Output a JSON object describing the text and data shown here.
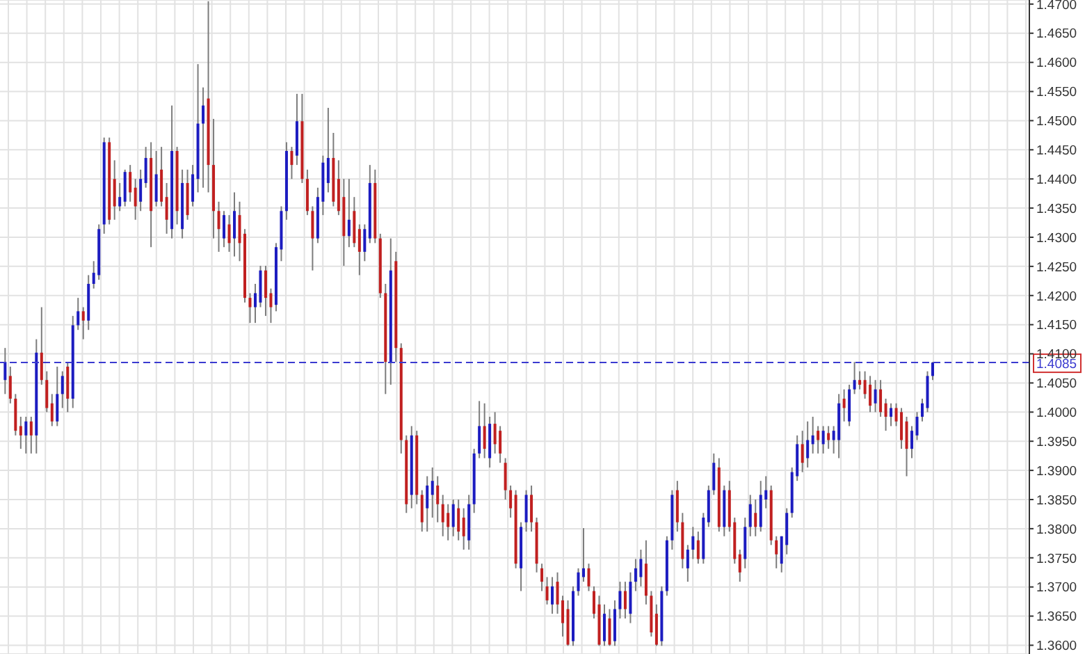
{
  "chart_data": {
    "type": "candlestick",
    "colors": [
      "#1c1cc0",
      "#c02020",
      "#c02020",
      "#c02020",
      "#1c1cc0",
      "#c02020",
      "#1c1cc0",
      "#c02020",
      "#c02020",
      "#c02020",
      "#1c1cc0",
      "#1c1cc0",
      "#c02020",
      "#1c1cc0",
      "#1c1cc0",
      "#c02020",
      "#1c1cc0",
      "#1c1cc0",
      "#1c1cc0",
      "#1c1cc0",
      "#c02020",
      "#c02020",
      "#1c1cc0",
      "#1c1cc0",
      "#c02020",
      "#c02020",
      "#1c1cc0",
      "#1c1cc0",
      "#c02020",
      "#1c1cc0",
      "#c02020",
      "#c02020",
      "#1c1cc0",
      "#c02020",
      "#1c1cc0",
      "#c02020",
      "#1c1cc0",
      "#1c1cc0",
      "#1c1cc0",
      "#c02020",
      "#c02020",
      "#c02020",
      "#1c1cc0",
      "#c02020",
      "#1c1cc0",
      "#c02020",
      "#c02020",
      "#c02020",
      "#1c1cc0",
      "#1c1cc0",
      "#c02020",
      "#c02020",
      "#1c1cc0",
      "#1c1cc0",
      "#1c1cc0",
      "#c02020",
      "#1c1cc0",
      "#c02020",
      "#c02020",
      "#c02020",
      "#1c1cc0",
      "#1c1cc0",
      "#1c1cc0",
      "#c02020",
      "#c02020",
      "#c02020",
      "#1c1cc0",
      "#c02020",
      "#c02020",
      "#1c1cc0",
      "#1c1cc0",
      "#c02020",
      "#c02020",
      "#c02020",
      "#1c1cc0",
      "#c02020",
      "#c02020",
      "#c02020",
      "#1c1cc0",
      "#c02020",
      "#c02020",
      "#1c1cc0",
      "#1c1cc0",
      "#c02020",
      "#c02020",
      "#c02020",
      "#1c1cc0",
      "#c02020",
      "#c02020",
      "#1c1cc0",
      "#1c1cc0",
      "#1c1cc0",
      "#c02020",
      "#1c1cc0",
      "#c02020",
      "#c02020",
      "#c02020",
      "#c02020",
      "#c02020",
      "#1c1cc0",
      "#1c1cc0",
      "#c02020",
      "#c02020",
      "#c02020",
      "#c02020",
      "#1c1cc0",
      "#c02020",
      "#c02020",
      "#c02020",
      "#1c1cc0",
      "#1c1cc0",
      "#1c1cc0",
      "#c02020",
      "#c02020",
      "#c02020",
      "#1c1cc0",
      "#c02020",
      "#1c1cc0",
      "#1c1cc0",
      "#c02020",
      "#1c1cc0",
      "#1c1cc0",
      "#1c1cc0",
      "#c02020",
      "#c02020",
      "#c02020",
      "#1c1cc0",
      "#1c1cc0",
      "#1c1cc0",
      "#c02020",
      "#c02020",
      "#1c1cc0",
      "#1c1cc0",
      "#c02020",
      "#1c1cc0",
      "#1c1cc0",
      "#1c1cc0",
      "#c02020",
      "#1c1cc0",
      "#c02020",
      "#c02020",
      "#c02020",
      "#1c1cc0",
      "#1c1cc0",
      "#c02020",
      "#1c1cc0",
      "#1c1cc0",
      "#c02020",
      "#c02020",
      "#1c1cc0",
      "#1c1cc0",
      "#1c1cc0",
      "#1c1cc0",
      "#c02020",
      "#1c1cc0",
      "#1c1cc0",
      "#c02020",
      "#1c1cc0",
      "#c02020",
      "#1c1cc0",
      "#1c1cc0",
      "#c02020",
      "#1c1cc0",
      "#1c1cc0",
      "#c02020",
      "#c02020",
      "#c02020",
      "#1c1cc0",
      "#c02020",
      "#c02020",
      "#1c1cc0",
      "#c02020",
      "#c02020",
      "#c02020",
      "#1c1cc0",
      "#1c1cc0",
      "#1c1cc0",
      "#1c1cc0",
      "#1c1cc0",
      null,
      null,
      null,
      null,
      null,
      null,
      null,
      null,
      null,
      null,
      null,
      null,
      null,
      null,
      null,
      null,
      null,
      null
    ],
    "grid": true,
    "tick_labels": "y",
    "ylim": [
      1.3585,
      1.4707
    ],
    "yticks": [
      {
        "value": 1.36,
        "label": "1.3600"
      },
      {
        "value": 1.365,
        "label": "1.3650"
      },
      {
        "value": 1.37,
        "label": "1.3700"
      },
      {
        "value": 1.375,
        "label": "1.3750"
      },
      {
        "value": 1.38,
        "label": "1.3800"
      },
      {
        "value": 1.385,
        "label": "1.3850"
      },
      {
        "value": 1.39,
        "label": "1.3900"
      },
      {
        "value": 1.395,
        "label": "1.3950"
      },
      {
        "value": 1.4,
        "label": "1.4000"
      },
      {
        "value": 1.405,
        "label": "1.4050"
      },
      {
        "value": 1.41,
        "label": "1.4100"
      },
      {
        "value": 1.415,
        "label": "1.4150"
      },
      {
        "value": 1.42,
        "label": "1.4200"
      },
      {
        "value": 1.425,
        "label": "1.4250"
      },
      {
        "value": 1.43,
        "label": "1.4300"
      },
      {
        "value": 1.435,
        "label": "1.4350"
      },
      {
        "value": 1.44,
        "label": "1.4400"
      },
      {
        "value": 1.445,
        "label": "1.4450"
      },
      {
        "value": 1.45,
        "label": "1.4500"
      },
      {
        "value": 1.455,
        "label": "1.4550"
      },
      {
        "value": 1.46,
        "label": "1.4600"
      },
      {
        "value": 1.465,
        "label": "1.4650"
      },
      {
        "value": 1.47,
        "label": "1.4700"
      }
    ],
    "ref_lines": [
      {
        "axis": "y",
        "value": 1.4085,
        "label": "1.4085",
        "color": "#3a3ad0",
        "line_style": "dashed"
      }
    ],
    "categories": [
      null,
      null,
      null,
      null,
      null,
      null,
      null,
      null,
      null,
      null,
      null,
      null,
      null,
      null,
      null,
      null,
      null,
      null,
      null,
      null,
      null,
      null,
      null,
      null,
      null,
      null,
      null,
      null,
      null,
      null,
      null,
      null,
      null,
      null,
      null,
      null,
      null,
      null,
      null,
      null,
      null,
      null,
      null,
      null,
      null,
      null,
      null,
      null,
      null,
      null,
      null,
      null,
      null,
      null,
      null,
      null,
      null,
      null,
      null,
      null,
      null,
      null,
      null,
      null,
      null,
      null,
      null,
      null,
      null,
      null,
      null,
      null,
      null,
      null,
      null,
      null,
      null,
      null,
      null,
      null,
      null,
      null,
      null,
      null,
      null,
      null,
      null,
      null,
      null,
      null,
      null,
      null,
      null,
      null,
      null,
      null,
      null,
      null,
      null,
      null,
      null,
      null,
      null,
      null,
      null,
      null,
      null,
      null,
      null,
      null,
      null,
      null,
      null,
      null,
      null,
      null,
      null,
      null,
      null,
      null,
      null,
      null,
      null,
      null,
      null,
      null,
      null,
      null,
      null,
      null,
      null,
      null,
      null,
      null,
      null,
      null,
      null,
      null,
      null,
      null,
      null,
      null,
      null,
      null,
      null,
      null,
      null,
      null,
      null,
      null,
      null,
      null,
      null,
      null,
      null,
      null,
      null,
      null,
      null,
      null,
      null,
      null,
      null,
      null,
      null,
      null,
      null,
      null,
      null,
      null,
      null,
      null,
      null,
      null,
      null,
      null,
      null,
      null,
      null,
      null,
      null,
      null,
      null,
      null,
      null,
      null,
      null,
      null,
      null,
      null,
      null,
      null,
      null,
      null,
      null,
      null,
      null
    ],
    "ohlc": [
      [
        1.4055,
        1.411,
        1.4031,
        1.4086
      ],
      [
        1.4062,
        1.4078,
        1.4015,
        1.4023
      ],
      [
        1.4023,
        1.4031,
        1.396,
        1.3968
      ],
      [
        1.3976,
        1.3992,
        1.3937,
        1.396
      ],
      [
        1.396,
        1.3992,
        1.3929,
        1.3984
      ],
      [
        1.3984,
        1.3992,
        1.3929,
        1.396
      ],
      [
        1.396,
        1.4125,
        1.3929,
        1.4102
      ],
      [
        1.4102,
        1.418,
        1.4047,
        1.4055
      ],
      [
        1.4055,
        1.407,
        1.4,
        1.4007
      ],
      [
        1.4015,
        1.4031,
        1.3976,
        1.3984
      ],
      [
        1.3984,
        1.4078,
        1.3976,
        1.4031
      ],
      [
        1.4031,
        1.407,
        1.4007,
        1.4062
      ],
      [
        1.4078,
        1.4086,
        1.4,
        1.4023
      ],
      [
        1.4023,
        1.4165,
        1.4007,
        1.4149
      ],
      [
        1.4149,
        1.4196,
        1.4141,
        1.4173
      ],
      [
        1.4173,
        1.418,
        1.4125,
        1.4157
      ],
      [
        1.4157,
        1.4235,
        1.4141,
        1.422
      ],
      [
        1.422,
        1.4259,
        1.4212,
        1.4239
      ],
      [
        1.4235,
        1.4322,
        1.4227,
        1.4314
      ],
      [
        1.4322,
        1.4471,
        1.4306,
        1.4463
      ],
      [
        1.4463,
        1.4471,
        1.4322,
        1.433
      ],
      [
        1.44,
        1.4432,
        1.433,
        1.4353
      ],
      [
        1.4353,
        1.4393,
        1.4345,
        1.4369
      ],
      [
        1.4361,
        1.4416,
        1.4353,
        1.4412
      ],
      [
        1.4412,
        1.4424,
        1.4361,
        1.4377
      ],
      [
        1.4385,
        1.44,
        1.433,
        1.4353
      ],
      [
        1.4361,
        1.4416,
        1.4345,
        1.44
      ],
      [
        1.4393,
        1.4455,
        1.4385,
        1.4436
      ],
      [
        1.4436,
        1.4463,
        1.4283,
        1.4345
      ],
      [
        1.4361,
        1.4448,
        1.4353,
        1.4408
      ],
      [
        1.4416,
        1.4455,
        1.4353,
        1.4361
      ],
      [
        1.4369,
        1.4393,
        1.4306,
        1.433
      ],
      [
        1.4314,
        1.4526,
        1.4298,
        1.4448
      ],
      [
        1.4448,
        1.4455,
        1.4322,
        1.4345
      ],
      [
        1.4314,
        1.4416,
        1.4298,
        1.4393
      ],
      [
        1.4393,
        1.4416,
        1.433,
        1.4338
      ],
      [
        1.4361,
        1.4424,
        1.4353,
        1.4408
      ],
      [
        1.44,
        1.4597,
        1.4377,
        1.4495
      ],
      [
        1.4495,
        1.4557,
        1.4385,
        1.4526
      ],
      [
        1.4538,
        1.4705,
        1.4377,
        1.4424
      ],
      [
        1.4424,
        1.4503,
        1.4298,
        1.4345
      ],
      [
        1.4345,
        1.4361,
        1.4275,
        1.4314
      ],
      [
        1.4298,
        1.4345,
        1.4283,
        1.4338
      ],
      [
        1.4322,
        1.4338,
        1.4275,
        1.429
      ],
      [
        1.4298,
        1.4377,
        1.4267,
        1.4345
      ],
      [
        1.4338,
        1.4361,
        1.4259,
        1.429
      ],
      [
        1.4306,
        1.4314,
        1.4188,
        1.4196
      ],
      [
        1.4196,
        1.4204,
        1.4153,
        1.418
      ],
      [
        1.418,
        1.422,
        1.4153,
        1.4204
      ],
      [
        1.4188,
        1.4251,
        1.418,
        1.4243
      ],
      [
        1.4243,
        1.4251,
        1.4165,
        1.4196
      ],
      [
        1.4204,
        1.4212,
        1.4153,
        1.418
      ],
      [
        1.4184,
        1.429,
        1.4173,
        1.4283
      ],
      [
        1.4279,
        1.4353,
        1.4259,
        1.4345
      ],
      [
        1.4345,
        1.4463,
        1.433,
        1.4448
      ],
      [
        1.4448,
        1.4455,
        1.44,
        1.4424
      ],
      [
        1.444,
        1.4546,
        1.4424,
        1.4499
      ],
      [
        1.4499,
        1.4546,
        1.4393,
        1.44
      ],
      [
        1.44,
        1.4416,
        1.4338,
        1.4345
      ],
      [
        1.4345,
        1.4353,
        1.4243,
        1.4298
      ],
      [
        1.4298,
        1.4385,
        1.429,
        1.4369
      ],
      [
        1.4361,
        1.444,
        1.4338,
        1.4428
      ],
      [
        1.4393,
        1.4522,
        1.4377,
        1.4436
      ],
      [
        1.4436,
        1.4479,
        1.4353,
        1.4361
      ],
      [
        1.44,
        1.4432,
        1.4338,
        1.4345
      ],
      [
        1.4369,
        1.44,
        1.4251,
        1.4302
      ],
      [
        1.4302,
        1.44,
        1.4283,
        1.433
      ],
      [
        1.4345,
        1.4369,
        1.4283,
        1.429
      ],
      [
        1.4314,
        1.4322,
        1.4235,
        1.4275
      ],
      [
        1.4275,
        1.4322,
        1.4259,
        1.4314
      ],
      [
        1.4298,
        1.4424,
        1.429,
        1.4393
      ],
      [
        1.4393,
        1.4416,
        1.429,
        1.4298
      ],
      [
        1.4298,
        1.4306,
        1.4196,
        1.4204
      ],
      [
        1.4204,
        1.422,
        1.4031,
        1.4086
      ],
      [
        1.4086,
        1.4298,
        1.4047,
        1.4243
      ],
      [
        1.4259,
        1.4275,
        1.4086,
        1.411
      ],
      [
        1.411,
        1.4118,
        1.3929,
        1.3952
      ],
      [
        1.3952,
        1.396,
        1.3827,
        1.3842
      ],
      [
        1.3858,
        1.3976,
        1.3835,
        1.396
      ],
      [
        1.396,
        1.3968,
        1.3842,
        1.3858
      ],
      [
        1.3858,
        1.3866,
        1.3795,
        1.3811
      ],
      [
        1.3835,
        1.389,
        1.3795,
        1.3874
      ],
      [
        1.3858,
        1.3905,
        1.3819,
        1.3882
      ],
      [
        1.3874,
        1.389,
        1.3811,
        1.3842
      ],
      [
        1.3842,
        1.3858,
        1.3787,
        1.3811
      ],
      [
        1.3827,
        1.3842,
        1.378,
        1.3803
      ],
      [
        1.3803,
        1.385,
        1.3787,
        1.3842
      ],
      [
        1.3835,
        1.385,
        1.378,
        1.3795
      ],
      [
        1.3819,
        1.3835,
        1.3764,
        1.3787
      ],
      [
        1.378,
        1.3858,
        1.3764,
        1.3842
      ],
      [
        1.3842,
        1.3937,
        1.3827,
        1.3929
      ],
      [
        1.3929,
        1.4019,
        1.3921,
        1.3976
      ],
      [
        1.3976,
        1.4015,
        1.3921,
        1.3937
      ],
      [
        1.3921,
        1.3992,
        1.3905,
        1.398
      ],
      [
        1.398,
        1.4,
        1.3929,
        1.3945
      ],
      [
        1.3968,
        1.3976,
        1.3913,
        1.3929
      ],
      [
        1.3913,
        1.3921,
        1.385,
        1.3866
      ],
      [
        1.3866,
        1.3874,
        1.3819,
        1.3835
      ],
      [
        1.3858,
        1.3866,
        1.3732,
        1.374
      ],
      [
        1.3732,
        1.3811,
        1.3693,
        1.3803
      ],
      [
        1.3811,
        1.3866,
        1.3795,
        1.3858
      ],
      [
        1.3858,
        1.3874,
        1.3795,
        1.3811
      ],
      [
        1.3811,
        1.3819,
        1.3725,
        1.374
      ],
      [
        1.3732,
        1.374,
        1.3693,
        1.3709
      ],
      [
        1.3701,
        1.3717,
        1.367,
        1.3677
      ],
      [
        1.367,
        1.3717,
        1.3654,
        1.3701
      ],
      [
        1.3709,
        1.3725,
        1.3654,
        1.367
      ],
      [
        1.3677,
        1.3685,
        1.3615,
        1.3638
      ],
      [
        1.3662,
        1.3677,
        1.3599,
        1.3601
      ],
      [
        1.3607,
        1.3701,
        1.3599,
        1.3693
      ],
      [
        1.3693,
        1.3732,
        1.3685,
        1.3725
      ],
      [
        1.3717,
        1.3801,
        1.3709,
        1.3732
      ],
      [
        1.3732,
        1.374,
        1.3693,
        1.3701
      ],
      [
        1.3693,
        1.3701,
        1.3646,
        1.3654
      ],
      [
        1.367,
        1.3685,
        1.3599,
        1.3601
      ],
      [
        1.3607,
        1.367,
        1.3599,
        1.3654
      ],
      [
        1.3646,
        1.3662,
        1.3599,
        1.3601
      ],
      [
        1.3607,
        1.3677,
        1.3599,
        1.3662
      ],
      [
        1.3662,
        1.3709,
        1.3646,
        1.3693
      ],
      [
        1.3693,
        1.3709,
        1.3646,
        1.3662
      ],
      [
        1.3654,
        1.3725,
        1.3638,
        1.3709
      ],
      [
        1.3709,
        1.3748,
        1.3693,
        1.3732
      ],
      [
        1.3717,
        1.3764,
        1.3701,
        1.3748
      ],
      [
        1.374,
        1.378,
        1.367,
        1.3685
      ],
      [
        1.3685,
        1.3693,
        1.3615,
        1.3622
      ],
      [
        1.3654,
        1.367,
        1.3599,
        1.3601
      ],
      [
        1.3607,
        1.3701,
        1.3599,
        1.3693
      ],
      [
        1.3693,
        1.3787,
        1.3685,
        1.378
      ],
      [
        1.378,
        1.3866,
        1.3764,
        1.3858
      ],
      [
        1.3866,
        1.3882,
        1.3795,
        1.3811
      ],
      [
        1.3811,
        1.3827,
        1.3732,
        1.3748
      ],
      [
        1.3732,
        1.3772,
        1.3709,
        1.3764
      ],
      [
        1.3764,
        1.3803,
        1.3748,
        1.3787
      ],
      [
        1.378,
        1.3795,
        1.374,
        1.3748
      ],
      [
        1.3748,
        1.3827,
        1.374,
        1.3819
      ],
      [
        1.3811,
        1.3874,
        1.3803,
        1.3866
      ],
      [
        1.3866,
        1.3929,
        1.3858,
        1.3913
      ],
      [
        1.3905,
        1.3921,
        1.3795,
        1.3803
      ],
      [
        1.3803,
        1.3874,
        1.3787,
        1.3866
      ],
      [
        1.3866,
        1.3882,
        1.3795,
        1.3803
      ],
      [
        1.3811,
        1.3819,
        1.374,
        1.3748
      ],
      [
        1.3756,
        1.3764,
        1.3709,
        1.3725
      ],
      [
        1.3748,
        1.3819,
        1.3732,
        1.3803
      ],
      [
        1.3803,
        1.3858,
        1.3787,
        1.3842
      ],
      [
        1.3827,
        1.385,
        1.3787,
        1.3803
      ],
      [
        1.3803,
        1.3882,
        1.3795,
        1.3858
      ],
      [
        1.385,
        1.389,
        1.3835,
        1.3866
      ],
      [
        1.3866,
        1.3874,
        1.3772,
        1.378
      ],
      [
        1.378,
        1.3787,
        1.3732,
        1.3756
      ],
      [
        1.374,
        1.3787,
        1.3725,
        1.3787
      ],
      [
        1.3772,
        1.3835,
        1.3756,
        1.3827
      ],
      [
        1.3827,
        1.3905,
        1.3819,
        1.3897
      ],
      [
        1.389,
        1.396,
        1.3882,
        1.3945
      ],
      [
        1.3945,
        1.3968,
        1.3897,
        1.3913
      ],
      [
        1.3921,
        1.3984,
        1.3905,
        1.3952
      ],
      [
        1.3945,
        1.3992,
        1.3929,
        1.396
      ],
      [
        1.3968,
        1.3976,
        1.3929,
        1.3952
      ],
      [
        1.3945,
        1.3976,
        1.3929,
        1.3968
      ],
      [
        1.3964,
        1.3976,
        1.3937,
        1.3952
      ],
      [
        1.3952,
        1.3976,
        1.3929,
        1.3968
      ],
      [
        1.3952,
        1.4031,
        1.3921,
        1.4015
      ],
      [
        1.4023,
        1.4039,
        1.3984,
        1.4007
      ],
      [
        1.3984,
        1.4047,
        1.3976,
        1.4039
      ],
      [
        1.4039,
        1.4086,
        1.4031,
        1.4055
      ],
      [
        1.4055,
        1.407,
        1.4039,
        1.4047
      ],
      [
        1.4055,
        1.407,
        1.4023,
        1.4031
      ],
      [
        1.4047,
        1.4062,
        1.4,
        1.4011
      ],
      [
        1.4015,
        1.4055,
        1.4,
        1.4039
      ],
      [
        1.4039,
        1.4055,
        1.3992,
        1.4
      ],
      [
        1.4015,
        1.4023,
        1.3968,
        1.3992
      ],
      [
        1.3992,
        1.4015,
        1.3976,
        1.4007
      ],
      [
        1.4007,
        1.4015,
        1.3976,
        1.3984
      ],
      [
        1.4,
        1.4007,
        1.3937,
        1.3952
      ],
      [
        1.3984,
        1.3992,
        1.389,
        1.3937
      ],
      [
        1.3937,
        1.3976,
        1.3921,
        1.3968
      ],
      [
        1.396,
        1.4,
        1.3952,
        1.3992
      ],
      [
        1.3992,
        1.4023,
        1.3984,
        1.4015
      ],
      [
        1.4007,
        1.407,
        1.4,
        1.4062
      ],
      [
        1.4062,
        1.4086,
        1.4055,
        1.4085
      ],
      null,
      null,
      null,
      null,
      null,
      null,
      null,
      null,
      null,
      null,
      null,
      null,
      null,
      null,
      null,
      null,
      null,
      null
    ]
  }
}
